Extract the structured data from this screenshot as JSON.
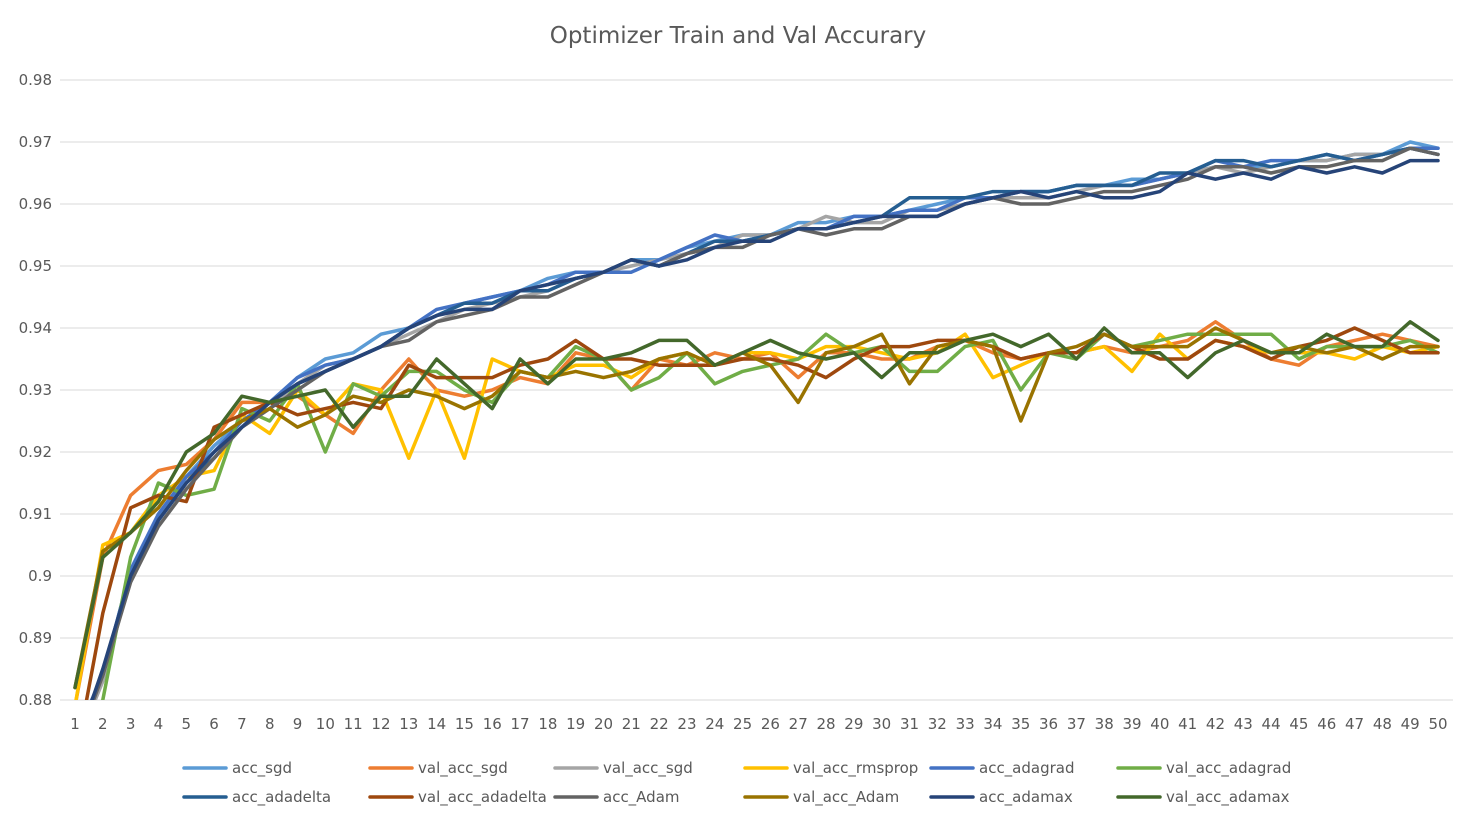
{
  "chart_data": {
    "type": "line",
    "title": "Optimizer Train and Val Accurary",
    "xlabel": "",
    "ylabel": "",
    "ylim": [
      0.88,
      0.98
    ],
    "yticks": [
      "0.88",
      "0.89",
      "0.9",
      "0.91",
      "0.92",
      "0.93",
      "0.94",
      "0.95",
      "0.96",
      "0.97",
      "0.98"
    ],
    "x": [
      1,
      2,
      3,
      4,
      5,
      6,
      7,
      8,
      9,
      10,
      11,
      12,
      13,
      14,
      15,
      16,
      17,
      18,
      19,
      20,
      21,
      22,
      23,
      24,
      25,
      26,
      27,
      28,
      29,
      30,
      31,
      32,
      33,
      34,
      35,
      36,
      37,
      38,
      39,
      40,
      41,
      42,
      43,
      44,
      45,
      46,
      47,
      48,
      49,
      50
    ],
    "grid": true,
    "legend_position": "bottom",
    "series": [
      {
        "name": "acc_sgd",
        "color": "#5b9bd5",
        "values": [
          0.873,
          0.884,
          0.901,
          0.909,
          0.916,
          0.921,
          0.925,
          0.928,
          0.932,
          0.935,
          0.936,
          0.939,
          0.94,
          0.942,
          0.944,
          0.945,
          0.946,
          0.948,
          0.949,
          0.949,
          0.951,
          0.951,
          0.953,
          0.954,
          0.955,
          0.955,
          0.957,
          0.957,
          0.958,
          0.958,
          0.959,
          0.96,
          0.961,
          0.961,
          0.962,
          0.962,
          0.963,
          0.963,
          0.964,
          0.964,
          0.965,
          0.966,
          0.966,
          0.966,
          0.967,
          0.967,
          0.968,
          0.968,
          0.97,
          0.969
        ]
      },
      {
        "name": "val_acc_sgd",
        "color": "#ed7d31",
        "values": [
          0.879,
          0.903,
          0.913,
          0.917,
          0.918,
          0.922,
          0.928,
          0.928,
          0.929,
          0.926,
          0.923,
          0.93,
          0.935,
          0.93,
          0.929,
          0.93,
          0.932,
          0.931,
          0.936,
          0.935,
          0.93,
          0.935,
          0.934,
          0.936,
          0.935,
          0.936,
          0.932,
          0.936,
          0.936,
          0.935,
          0.935,
          0.937,
          0.938,
          0.936,
          0.935,
          0.936,
          0.936,
          0.937,
          0.936,
          0.937,
          0.938,
          0.941,
          0.938,
          0.935,
          0.934,
          0.937,
          0.938,
          0.939,
          0.938,
          0.937
        ]
      },
      {
        "name": "val_acc_sgd",
        "color": "#a5a5a5",
        "values": [
          0.872,
          0.883,
          0.9,
          0.909,
          0.915,
          0.92,
          0.924,
          0.927,
          0.931,
          0.934,
          0.935,
          0.937,
          0.939,
          0.941,
          0.943,
          0.944,
          0.945,
          0.946,
          0.948,
          0.949,
          0.95,
          0.951,
          0.952,
          0.953,
          0.955,
          0.955,
          0.956,
          0.958,
          0.957,
          0.957,
          0.959,
          0.959,
          0.96,
          0.961,
          0.961,
          0.961,
          0.962,
          0.963,
          0.963,
          0.964,
          0.965,
          0.966,
          0.965,
          0.966,
          0.967,
          0.967,
          0.968,
          0.968,
          0.969,
          0.968
        ]
      },
      {
        "name": "val_acc_rmsprop",
        "color": "#ffc000",
        "values": [
          0.879,
          0.905,
          0.907,
          0.913,
          0.916,
          0.917,
          0.926,
          0.923,
          0.93,
          0.926,
          0.931,
          0.93,
          0.919,
          0.93,
          0.919,
          0.935,
          0.933,
          0.932,
          0.934,
          0.934,
          0.932,
          0.935,
          0.936,
          0.934,
          0.936,
          0.936,
          0.935,
          0.937,
          0.937,
          0.936,
          0.935,
          0.936,
          0.939,
          0.932,
          0.934,
          0.936,
          0.936,
          0.937,
          0.933,
          0.939,
          0.935,
          0.938,
          0.937,
          0.936,
          0.936,
          0.936,
          0.935,
          0.937,
          0.936,
          0.937
        ]
      },
      {
        "name": "acc_adagrad",
        "color": "#4472c4",
        "values": [
          0.874,
          0.884,
          0.901,
          0.91,
          0.916,
          0.92,
          0.925,
          0.928,
          0.932,
          0.934,
          0.935,
          0.937,
          0.94,
          0.943,
          0.944,
          0.945,
          0.946,
          0.947,
          0.949,
          0.949,
          0.949,
          0.951,
          0.953,
          0.955,
          0.954,
          0.955,
          0.956,
          0.956,
          0.958,
          0.958,
          0.959,
          0.959,
          0.961,
          0.961,
          0.962,
          0.962,
          0.963,
          0.963,
          0.963,
          0.964,
          0.965,
          0.967,
          0.966,
          0.967,
          0.967,
          0.968,
          0.967,
          0.968,
          0.969,
          0.969
        ]
      },
      {
        "name": "val_acc_adagrad",
        "color": "#70ad47",
        "values": [
          0.87,
          0.88,
          0.903,
          0.915,
          0.913,
          0.914,
          0.927,
          0.925,
          0.931,
          0.92,
          0.931,
          0.929,
          0.933,
          0.933,
          0.93,
          0.928,
          0.933,
          0.932,
          0.937,
          0.935,
          0.93,
          0.932,
          0.936,
          0.931,
          0.933,
          0.934,
          0.935,
          0.939,
          0.936,
          0.937,
          0.933,
          0.933,
          0.937,
          0.938,
          0.93,
          0.936,
          0.935,
          0.939,
          0.937,
          0.938,
          0.939,
          0.939,
          0.939,
          0.939,
          0.935,
          0.937,
          0.937,
          0.937,
          0.938,
          0.936
        ]
      },
      {
        "name": "acc_adadelta",
        "color": "#255e91",
        "values": [
          0.873,
          0.884,
          0.9,
          0.909,
          0.915,
          0.919,
          0.924,
          0.928,
          0.931,
          0.933,
          0.935,
          0.937,
          0.94,
          0.942,
          0.944,
          0.944,
          0.946,
          0.946,
          0.948,
          0.949,
          0.951,
          0.95,
          0.952,
          0.954,
          0.954,
          0.955,
          0.956,
          0.956,
          0.957,
          0.958,
          0.961,
          0.961,
          0.961,
          0.962,
          0.962,
          0.962,
          0.963,
          0.963,
          0.963,
          0.965,
          0.965,
          0.967,
          0.967,
          0.966,
          0.967,
          0.968,
          0.967,
          0.968,
          0.969,
          0.968
        ]
      },
      {
        "name": "val_acc_adadelta",
        "color": "#9e480e",
        "values": [
          0.87,
          0.894,
          0.911,
          0.913,
          0.912,
          0.924,
          0.926,
          0.928,
          0.926,
          0.927,
          0.928,
          0.927,
          0.934,
          0.932,
          0.932,
          0.932,
          0.934,
          0.935,
          0.938,
          0.935,
          0.935,
          0.934,
          0.934,
          0.934,
          0.935,
          0.935,
          0.934,
          0.932,
          0.935,
          0.937,
          0.937,
          0.938,
          0.938,
          0.937,
          0.935,
          0.936,
          0.936,
          0.939,
          0.937,
          0.935,
          0.935,
          0.938,
          0.937,
          0.935,
          0.937,
          0.938,
          0.94,
          0.938,
          0.936,
          0.936
        ]
      },
      {
        "name": "acc_Adam",
        "color": "#636363",
        "values": [
          0.872,
          0.884,
          0.899,
          0.908,
          0.914,
          0.919,
          0.924,
          0.927,
          0.93,
          0.933,
          0.935,
          0.937,
          0.938,
          0.941,
          0.942,
          0.943,
          0.945,
          0.945,
          0.947,
          0.949,
          0.951,
          0.95,
          0.952,
          0.953,
          0.953,
          0.955,
          0.956,
          0.955,
          0.956,
          0.956,
          0.958,
          0.958,
          0.96,
          0.961,
          0.96,
          0.96,
          0.961,
          0.962,
          0.962,
          0.963,
          0.964,
          0.966,
          0.966,
          0.965,
          0.966,
          0.966,
          0.967,
          0.967,
          0.969,
          0.968
        ]
      },
      {
        "name": "val_acc_Adam",
        "color": "#997300",
        "values": [
          0.882,
          0.904,
          0.907,
          0.911,
          0.917,
          0.922,
          0.925,
          0.927,
          0.924,
          0.926,
          0.929,
          0.928,
          0.93,
          0.929,
          0.927,
          0.929,
          0.933,
          0.932,
          0.933,
          0.932,
          0.933,
          0.935,
          0.936,
          0.934,
          0.936,
          0.934,
          0.928,
          0.936,
          0.937,
          0.939,
          0.931,
          0.937,
          0.938,
          0.937,
          0.925,
          0.936,
          0.937,
          0.939,
          0.937,
          0.937,
          0.937,
          0.94,
          0.938,
          0.936,
          0.937,
          0.936,
          0.937,
          0.935,
          0.937,
          0.937
        ]
      },
      {
        "name": "acc_adamax",
        "color": "#264478",
        "values": [
          0.872,
          0.885,
          0.9,
          0.909,
          0.915,
          0.92,
          0.924,
          0.928,
          0.931,
          0.933,
          0.935,
          0.937,
          0.94,
          0.942,
          0.943,
          0.943,
          0.946,
          0.947,
          0.948,
          0.949,
          0.951,
          0.95,
          0.951,
          0.953,
          0.954,
          0.954,
          0.956,
          0.956,
          0.957,
          0.958,
          0.958,
          0.958,
          0.96,
          0.961,
          0.962,
          0.961,
          0.962,
          0.961,
          0.961,
          0.962,
          0.965,
          0.964,
          0.965,
          0.964,
          0.966,
          0.965,
          0.966,
          0.965,
          0.967,
          0.967
        ]
      },
      {
        "name": "val_acc_adamax",
        "color": "#43682b",
        "values": [
          0.882,
          0.903,
          0.907,
          0.912,
          0.92,
          0.923,
          0.929,
          0.928,
          0.929,
          0.93,
          0.924,
          0.929,
          0.929,
          0.935,
          0.931,
          0.927,
          0.935,
          0.931,
          0.935,
          0.935,
          0.936,
          0.938,
          0.938,
          0.934,
          0.936,
          0.938,
          0.936,
          0.935,
          0.936,
          0.932,
          0.936,
          0.936,
          0.938,
          0.939,
          0.937,
          0.939,
          0.935,
          0.94,
          0.936,
          0.936,
          0.932,
          0.936,
          0.938,
          0.936,
          0.936,
          0.939,
          0.937,
          0.937,
          0.941,
          0.938
        ]
      }
    ]
  }
}
